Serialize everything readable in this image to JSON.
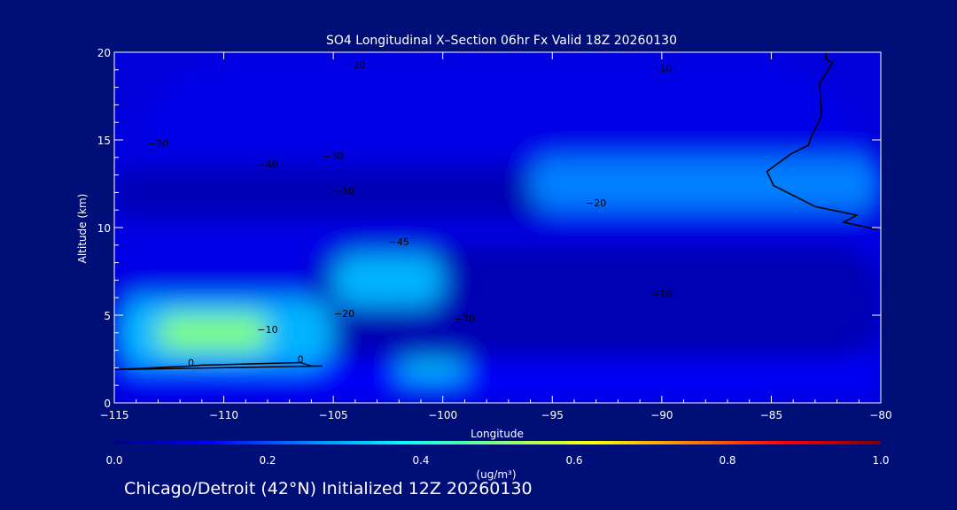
{
  "chart_data": {
    "type": "heatmap",
    "title": "SO4 Longitudinal X–Section 06hr  Fx Valid 18Z 20260130",
    "xlabel": "Longitude",
    "ylabel": "Altitude (km)",
    "xlim": [
      -115,
      -80
    ],
    "ylim": [
      0,
      20
    ],
    "x_ticks": [
      -115,
      -110,
      -105,
      -100,
      -95,
      -90,
      -85,
      -80
    ],
    "x_tick_labels": [
      "−115",
      "−110",
      "−105",
      "−100",
      "−95",
      "−90",
      "−85",
      "−80"
    ],
    "y_ticks": [
      0,
      5,
      10,
      15,
      20
    ],
    "y_tick_labels": [
      "0",
      "5",
      "10",
      "15",
      "20"
    ],
    "colorbar": {
      "label": "(ug/m³)",
      "range": [
        0.0,
        1.0
      ],
      "ticks": [
        0.0,
        0.2,
        0.4,
        0.6,
        0.8,
        1.0
      ],
      "tick_labels": [
        "0.0",
        "0.2",
        "0.4",
        "0.6",
        "0.8",
        "1.0"
      ],
      "colormap": [
        "#000080",
        "#0000ff",
        "#0080ff",
        "#00ffff",
        "#80ff80",
        "#ffff00",
        "#ff8000",
        "#ff0000",
        "#800000"
      ]
    },
    "so4_regions": [
      {
        "lon": [
          -115,
          -80
        ],
        "alt": [
          0,
          20
        ],
        "value": 0.1
      },
      {
        "lon": [
          -115,
          -80
        ],
        "alt": [
          0.5,
          2.5
        ],
        "value": 0.12
      },
      {
        "lon": [
          -115,
          -95
        ],
        "alt": [
          10.5,
          13.5
        ],
        "value": 0.05
      },
      {
        "lon": [
          -106,
          -80
        ],
        "alt": [
          2.5,
          9
        ],
        "value": 0.05
      },
      {
        "lon": [
          -96,
          -80
        ],
        "alt": [
          11,
          14
        ],
        "value": 0.25
      },
      {
        "lon": [
          -115,
          -105
        ],
        "alt": [
          2,
          6
        ],
        "value": 0.3
      },
      {
        "lon": [
          -113,
          -108
        ],
        "alt": [
          3,
          5
        ],
        "value": 0.5
      },
      {
        "lon": [
          -105,
          -100
        ],
        "alt": [
          5.5,
          8.5
        ],
        "value": 0.3
      },
      {
        "lon": [
          -102,
          -99
        ],
        "alt": [
          1.2,
          2.5
        ],
        "value": 0.3
      }
    ],
    "contour_labels": [
      {
        "text": "−20",
        "lon": -104,
        "alt": 19.1
      },
      {
        "text": "−10",
        "lon": -90,
        "alt": 18.9
      },
      {
        "text": "−20",
        "lon": -113,
        "alt": 14.6
      },
      {
        "text": "−30",
        "lon": -105,
        "alt": 13.9
      },
      {
        "text": "−40",
        "lon": -108,
        "alt": 13.4
      },
      {
        "text": "−50",
        "lon": -104.5,
        "alt": 11.9
      },
      {
        "text": "−20",
        "lon": -93,
        "alt": 11.2
      },
      {
        "text": "−45",
        "lon": -102,
        "alt": 9.0
      },
      {
        "text": "−10",
        "lon": -90,
        "alt": 6.0
      },
      {
        "text": "−20",
        "lon": -104.5,
        "alt": 4.9
      },
      {
        "text": "−30",
        "lon": -99,
        "alt": 4.6
      },
      {
        "text": "−10",
        "lon": -108,
        "alt": 4.0
      },
      {
        "text": "0",
        "lon": -111.5,
        "alt": 2.1
      },
      {
        "text": "0",
        "lon": -106.5,
        "alt": 2.3
      }
    ],
    "terrain_contour": {
      "lon": [
        -115,
        -111.5,
        -111,
        -106.5,
        -106,
        -105.5,
        -115
      ],
      "alt": [
        1.9,
        2.1,
        2.15,
        2.3,
        2.1,
        2.1,
        1.9
      ]
    },
    "tropopause_contour": {
      "lon": [
        -82.5,
        -82.5,
        -82.2,
        -82.8,
        -82.7,
        -83.2,
        -83.3,
        -84.1,
        -85.2,
        -84.9,
        -83,
        -81.1,
        -81.7,
        -80.2
      ],
      "alt": [
        20,
        19.6,
        19.4,
        18.2,
        16.4,
        15.1,
        14.7,
        14.2,
        13.2,
        12.4,
        11.2,
        10.7,
        10.3,
        9.9
      ]
    }
  },
  "footer": {
    "subtitle": "Chicago/Detroit (42°N) Initialized 12Z 20260130"
  }
}
